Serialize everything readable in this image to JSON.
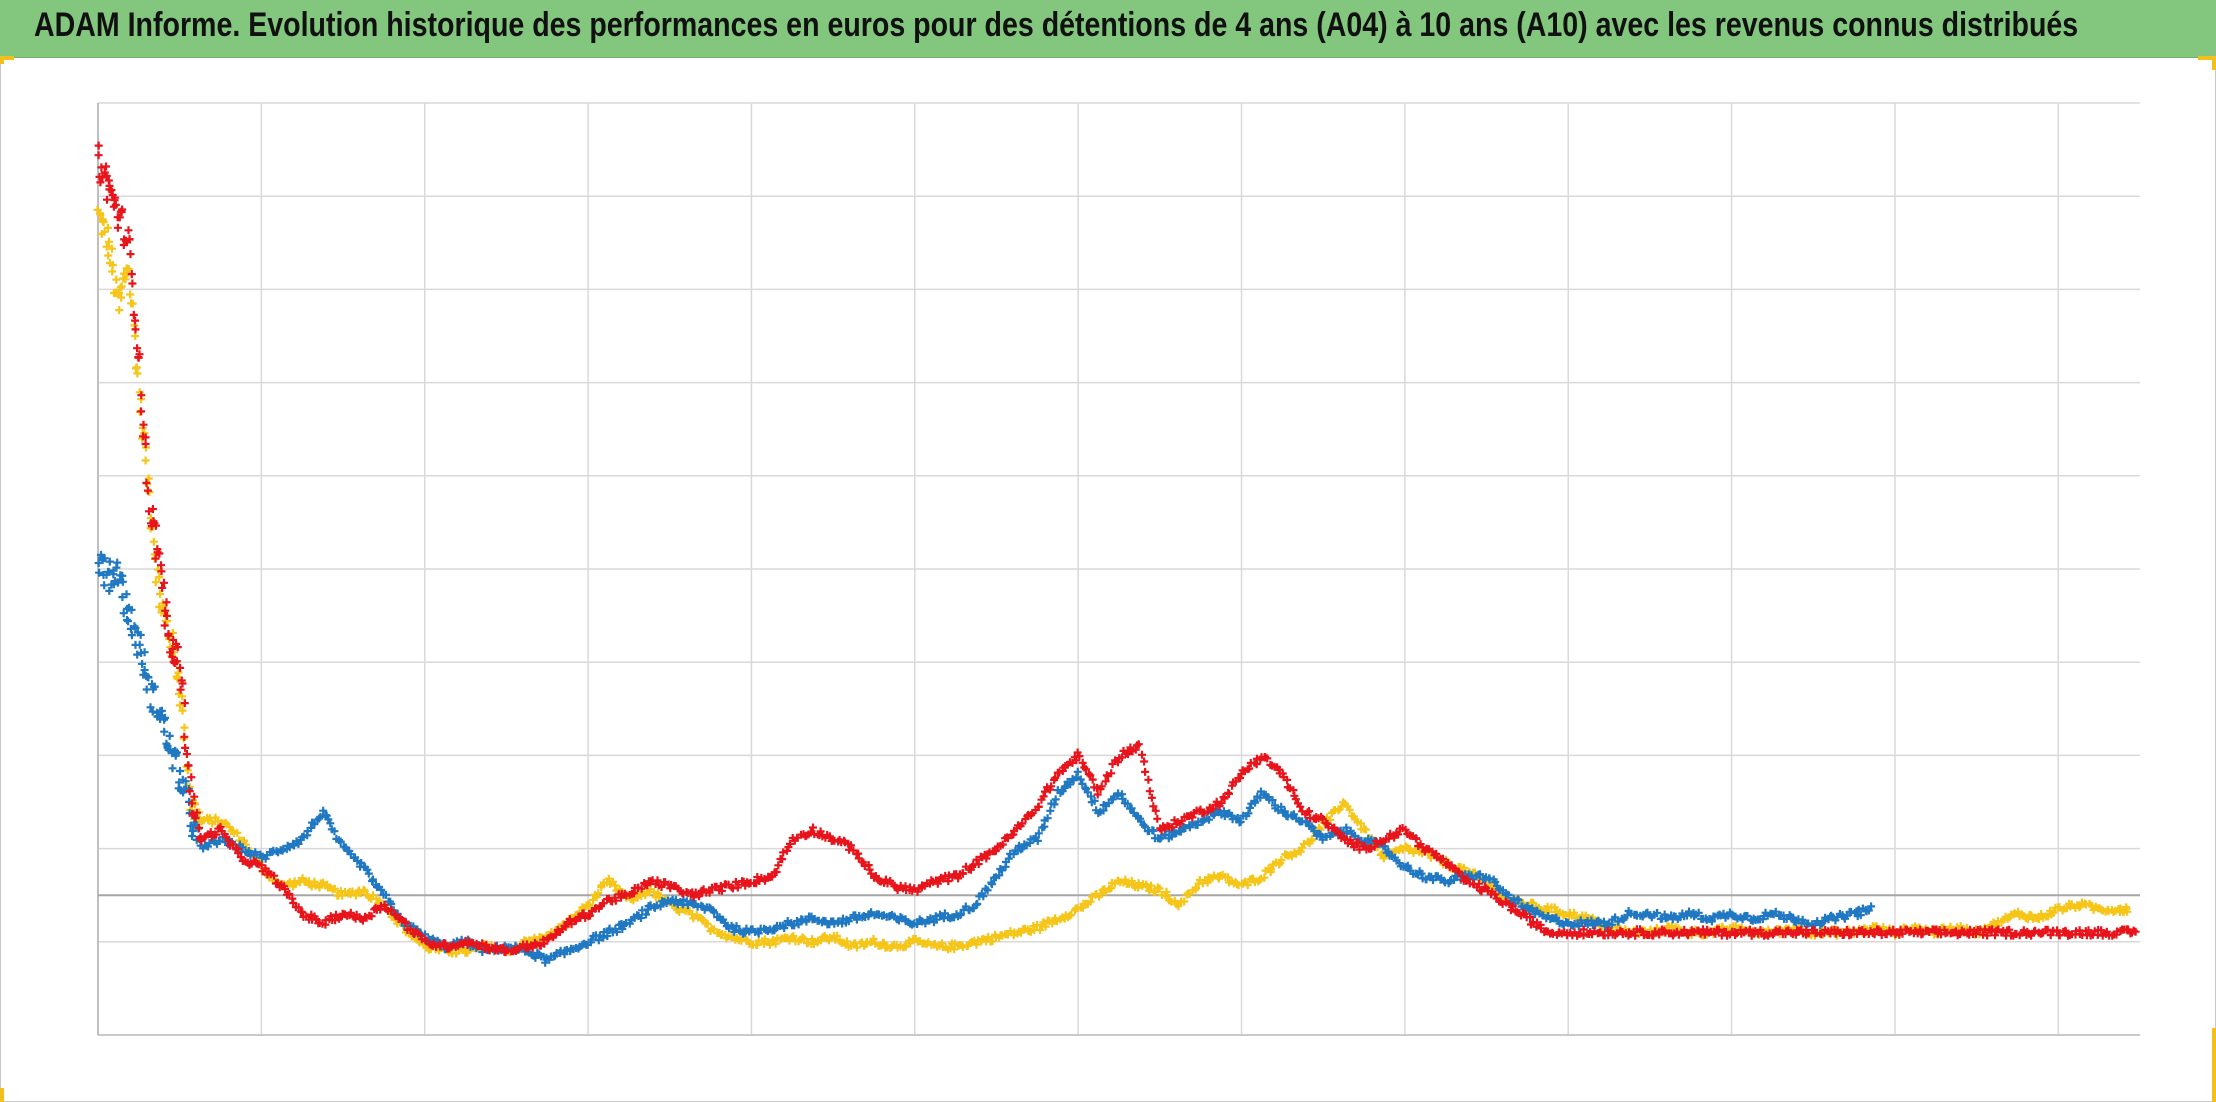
{
  "title": "ADAM Informe. Evolution historique des performances en euros pour des détentions de 4 ans (A04) à 10 ans (A10) avec les revenus connus distribués",
  "colors": {
    "title_bg": "#82c77d",
    "grid": "#d9d9d9",
    "axis": "#bfbfbf",
    "corner": "#f2c01c"
  },
  "chart_data": {
    "type": "scatter",
    "marker": "plus",
    "grid": true,
    "legend": "none",
    "xlim": [
      0,
      100
    ],
    "ylim": [
      -1.5,
      8.5
    ],
    "x_gridlines": 13,
    "y_gridlines": 10,
    "y_baseline": 0,
    "series": [
      {
        "color": "#f5c518",
        "x_end": 99.4,
        "points": [
          [
            0,
            7.3
          ],
          [
            0.5,
            7.0
          ],
          [
            1,
            6.3
          ],
          [
            1.5,
            6.8
          ],
          [
            2,
            5.4
          ],
          [
            2.5,
            4.3
          ],
          [
            3,
            3.2
          ],
          [
            3.5,
            2.8
          ],
          [
            4,
            2.3
          ],
          [
            4.5,
            1.0
          ],
          [
            5,
            0.8
          ],
          [
            6,
            0.8
          ],
          [
            7,
            0.6
          ],
          [
            8,
            0.3
          ],
          [
            9,
            0.1
          ],
          [
            10,
            0.15
          ],
          [
            11,
            0.1
          ],
          [
            12,
            0.0
          ],
          [
            13,
            0.05
          ],
          [
            14,
            -0.1
          ],
          [
            15,
            -0.35
          ],
          [
            16,
            -0.55
          ],
          [
            17,
            -0.6
          ],
          [
            18,
            -0.6
          ],
          [
            19,
            -0.55
          ],
          [
            20,
            -0.6
          ],
          [
            21,
            -0.5
          ],
          [
            22,
            -0.45
          ],
          [
            23,
            -0.3
          ],
          [
            24,
            -0.1
          ],
          [
            25,
            0.15
          ],
          [
            26,
            -0.05
          ],
          [
            27,
            0.05
          ],
          [
            28,
            -0.1
          ],
          [
            29,
            -0.2
          ],
          [
            30,
            -0.35
          ],
          [
            31,
            -0.45
          ],
          [
            32,
            -0.5
          ],
          [
            33,
            -0.5
          ],
          [
            34,
            -0.45
          ],
          [
            35,
            -0.5
          ],
          [
            36,
            -0.45
          ],
          [
            37,
            -0.55
          ],
          [
            38,
            -0.5
          ],
          [
            39,
            -0.55
          ],
          [
            40,
            -0.5
          ],
          [
            41,
            -0.55
          ],
          [
            42,
            -0.55
          ],
          [
            43,
            -0.5
          ],
          [
            44,
            -0.45
          ],
          [
            45,
            -0.4
          ],
          [
            46,
            -0.35
          ],
          [
            47,
            -0.25
          ],
          [
            48,
            -0.15
          ],
          [
            49,
            0.0
          ],
          [
            50,
            0.15
          ],
          [
            51,
            0.1
          ],
          [
            52,
            0.05
          ],
          [
            53,
            -0.1
          ],
          [
            54,
            0.15
          ],
          [
            55,
            0.2
          ],
          [
            56,
            0.1
          ],
          [
            57,
            0.2
          ],
          [
            58,
            0.4
          ],
          [
            59,
            0.5
          ],
          [
            60,
            0.75
          ],
          [
            61,
            1.0
          ],
          [
            62,
            0.7
          ],
          [
            63,
            0.4
          ],
          [
            64,
            0.5
          ],
          [
            65,
            0.45
          ],
          [
            66,
            0.35
          ],
          [
            67,
            0.25
          ],
          [
            68,
            0.15
          ],
          [
            69,
            -0.05
          ],
          [
            70,
            -0.1
          ],
          [
            71,
            -0.15
          ],
          [
            72,
            -0.2
          ],
          [
            73,
            -0.25
          ],
          [
            74,
            -0.35
          ],
          [
            75,
            -0.4
          ],
          [
            76,
            -0.4
          ],
          [
            77,
            -0.35
          ],
          [
            78,
            -0.4
          ],
          [
            79,
            -0.4
          ],
          [
            80,
            -0.35
          ],
          [
            81,
            -0.4
          ],
          [
            82,
            -0.4
          ],
          [
            83,
            -0.35
          ],
          [
            84,
            -0.4
          ],
          [
            85,
            -0.4
          ],
          [
            86,
            -0.4
          ],
          [
            87,
            -0.35
          ],
          [
            88,
            -0.4
          ],
          [
            89,
            -0.35
          ],
          [
            90,
            -0.4
          ],
          [
            91,
            -0.35
          ],
          [
            92,
            -0.4
          ],
          [
            93,
            -0.3
          ],
          [
            94,
            -0.2
          ],
          [
            95,
            -0.25
          ],
          [
            96,
            -0.15
          ],
          [
            97,
            -0.1
          ],
          [
            98,
            -0.15
          ],
          [
            99,
            -0.15
          ],
          [
            99.4,
            -0.15
          ]
        ]
      },
      {
        "color": "#1f78c1",
        "x_end": 86.9,
        "points": [
          [
            0,
            3.6
          ],
          [
            0.5,
            3.4
          ],
          [
            1,
            3.5
          ],
          [
            1.5,
            3.0
          ],
          [
            2,
            2.7
          ],
          [
            2.5,
            2.2
          ],
          [
            3,
            2.0
          ],
          [
            3.5,
            1.6
          ],
          [
            4,
            1.3
          ],
          [
            4.5,
            0.9
          ],
          [
            5,
            0.5
          ],
          [
            6,
            0.6
          ],
          [
            7,
            0.5
          ],
          [
            8,
            0.4
          ],
          [
            9,
            0.5
          ],
          [
            10,
            0.6
          ],
          [
            11,
            0.9
          ],
          [
            12,
            0.5
          ],
          [
            13,
            0.3
          ],
          [
            14,
            0.0
          ],
          [
            15,
            -0.3
          ],
          [
            16,
            -0.45
          ],
          [
            17,
            -0.55
          ],
          [
            18,
            -0.5
          ],
          [
            19,
            -0.6
          ],
          [
            20,
            -0.55
          ],
          [
            21,
            -0.6
          ],
          [
            22,
            -0.7
          ],
          [
            23,
            -0.6
          ],
          [
            24,
            -0.5
          ],
          [
            25,
            -0.4
          ],
          [
            26,
            -0.3
          ],
          [
            27,
            -0.15
          ],
          [
            28,
            -0.05
          ],
          [
            29,
            -0.1
          ],
          [
            30,
            -0.15
          ],
          [
            31,
            -0.35
          ],
          [
            32,
            -0.4
          ],
          [
            33,
            -0.35
          ],
          [
            34,
            -0.3
          ],
          [
            35,
            -0.25
          ],
          [
            36,
            -0.3
          ],
          [
            37,
            -0.25
          ],
          [
            38,
            -0.2
          ],
          [
            39,
            -0.25
          ],
          [
            40,
            -0.3
          ],
          [
            41,
            -0.25
          ],
          [
            42,
            -0.2
          ],
          [
            43,
            -0.1
          ],
          [
            44,
            0.2
          ],
          [
            45,
            0.5
          ],
          [
            46,
            0.6
          ],
          [
            47,
            1.1
          ],
          [
            48,
            1.3
          ],
          [
            49,
            0.9
          ],
          [
            50,
            1.1
          ],
          [
            51,
            0.8
          ],
          [
            52,
            0.6
          ],
          [
            53,
            0.7
          ],
          [
            54,
            0.8
          ],
          [
            55,
            0.9
          ],
          [
            56,
            0.8
          ],
          [
            57,
            1.1
          ],
          [
            58,
            0.9
          ],
          [
            59,
            0.8
          ],
          [
            60,
            0.6
          ],
          [
            61,
            0.7
          ],
          [
            62,
            0.6
          ],
          [
            63,
            0.5
          ],
          [
            64,
            0.3
          ],
          [
            65,
            0.2
          ],
          [
            66,
            0.15
          ],
          [
            67,
            0.2
          ],
          [
            68,
            0.2
          ],
          [
            69,
            0.0
          ],
          [
            70,
            -0.15
          ],
          [
            71,
            -0.25
          ],
          [
            72,
            -0.3
          ],
          [
            73,
            -0.3
          ],
          [
            74,
            -0.3
          ],
          [
            75,
            -0.2
          ],
          [
            76,
            -0.2
          ],
          [
            77,
            -0.25
          ],
          [
            78,
            -0.2
          ],
          [
            79,
            -0.25
          ],
          [
            80,
            -0.2
          ],
          [
            81,
            -0.25
          ],
          [
            82,
            -0.2
          ],
          [
            83,
            -0.25
          ],
          [
            84,
            -0.3
          ],
          [
            85,
            -0.25
          ],
          [
            86,
            -0.2
          ],
          [
            86.9,
            -0.15
          ]
        ]
      },
      {
        "color": "#e8141b",
        "x_end": 99.9,
        "points": [
          [
            0,
            7.9
          ],
          [
            0.5,
            7.6
          ],
          [
            1,
            7.3
          ],
          [
            1.5,
            7.0
          ],
          [
            2,
            5.8
          ],
          [
            2.5,
            4.2
          ],
          [
            3,
            3.6
          ],
          [
            3.5,
            2.7
          ],
          [
            4,
            2.5
          ],
          [
            4.5,
            1.2
          ],
          [
            5,
            0.6
          ],
          [
            6,
            0.7
          ],
          [
            7,
            0.4
          ],
          [
            8,
            0.3
          ],
          [
            9,
            0.1
          ],
          [
            10,
            -0.2
          ],
          [
            11,
            -0.3
          ],
          [
            12,
            -0.2
          ],
          [
            13,
            -0.25
          ],
          [
            14,
            -0.1
          ],
          [
            15,
            -0.3
          ],
          [
            16,
            -0.5
          ],
          [
            17,
            -0.55
          ],
          [
            18,
            -0.5
          ],
          [
            19,
            -0.55
          ],
          [
            20,
            -0.6
          ],
          [
            21,
            -0.55
          ],
          [
            22,
            -0.5
          ],
          [
            23,
            -0.3
          ],
          [
            24,
            -0.2
          ],
          [
            25,
            -0.05
          ],
          [
            26,
            0.0
          ],
          [
            27,
            0.15
          ],
          [
            28,
            0.1
          ],
          [
            29,
            0.0
          ],
          [
            30,
            0.05
          ],
          [
            31,
            0.1
          ],
          [
            32,
            0.15
          ],
          [
            33,
            0.2
          ],
          [
            34,
            0.6
          ],
          [
            35,
            0.7
          ],
          [
            36,
            0.6
          ],
          [
            37,
            0.5
          ],
          [
            38,
            0.2
          ],
          [
            39,
            0.1
          ],
          [
            40,
            0.05
          ],
          [
            41,
            0.15
          ],
          [
            42,
            0.2
          ],
          [
            43,
            0.35
          ],
          [
            44,
            0.5
          ],
          [
            45,
            0.7
          ],
          [
            46,
            0.95
          ],
          [
            47,
            1.3
          ],
          [
            48,
            1.5
          ],
          [
            49,
            1.1
          ],
          [
            50,
            1.5
          ],
          [
            51,
            1.6
          ],
          [
            52,
            0.7
          ],
          [
            53,
            0.8
          ],
          [
            54,
            0.9
          ],
          [
            55,
            1.0
          ],
          [
            56,
            1.3
          ],
          [
            57,
            1.5
          ],
          [
            58,
            1.3
          ],
          [
            59,
            0.9
          ],
          [
            60,
            0.8
          ],
          [
            61,
            0.6
          ],
          [
            62,
            0.5
          ],
          [
            63,
            0.6
          ],
          [
            64,
            0.7
          ],
          [
            65,
            0.5
          ],
          [
            66,
            0.35
          ],
          [
            67,
            0.15
          ],
          [
            68,
            0.05
          ],
          [
            69,
            -0.1
          ],
          [
            70,
            -0.25
          ],
          [
            71,
            -0.4
          ],
          [
            72,
            -0.4
          ],
          [
            73,
            -0.4
          ],
          [
            74,
            -0.4
          ],
          [
            75,
            -0.4
          ],
          [
            76,
            -0.4
          ],
          [
            77,
            -0.4
          ],
          [
            78,
            -0.4
          ],
          [
            79,
            -0.4
          ],
          [
            80,
            -0.4
          ],
          [
            81,
            -0.4
          ],
          [
            82,
            -0.4
          ],
          [
            83,
            -0.4
          ],
          [
            84,
            -0.4
          ],
          [
            85,
            -0.4
          ],
          [
            86,
            -0.4
          ],
          [
            87,
            -0.4
          ],
          [
            88,
            -0.4
          ],
          [
            89,
            -0.4
          ],
          [
            90,
            -0.4
          ],
          [
            91,
            -0.4
          ],
          [
            92,
            -0.4
          ],
          [
            93,
            -0.4
          ],
          [
            94,
            -0.4
          ],
          [
            95,
            -0.4
          ],
          [
            96,
            -0.4
          ],
          [
            97,
            -0.4
          ],
          [
            98,
            -0.4
          ],
          [
            99,
            -0.4
          ],
          [
            99.9,
            -0.4
          ]
        ]
      }
    ]
  }
}
